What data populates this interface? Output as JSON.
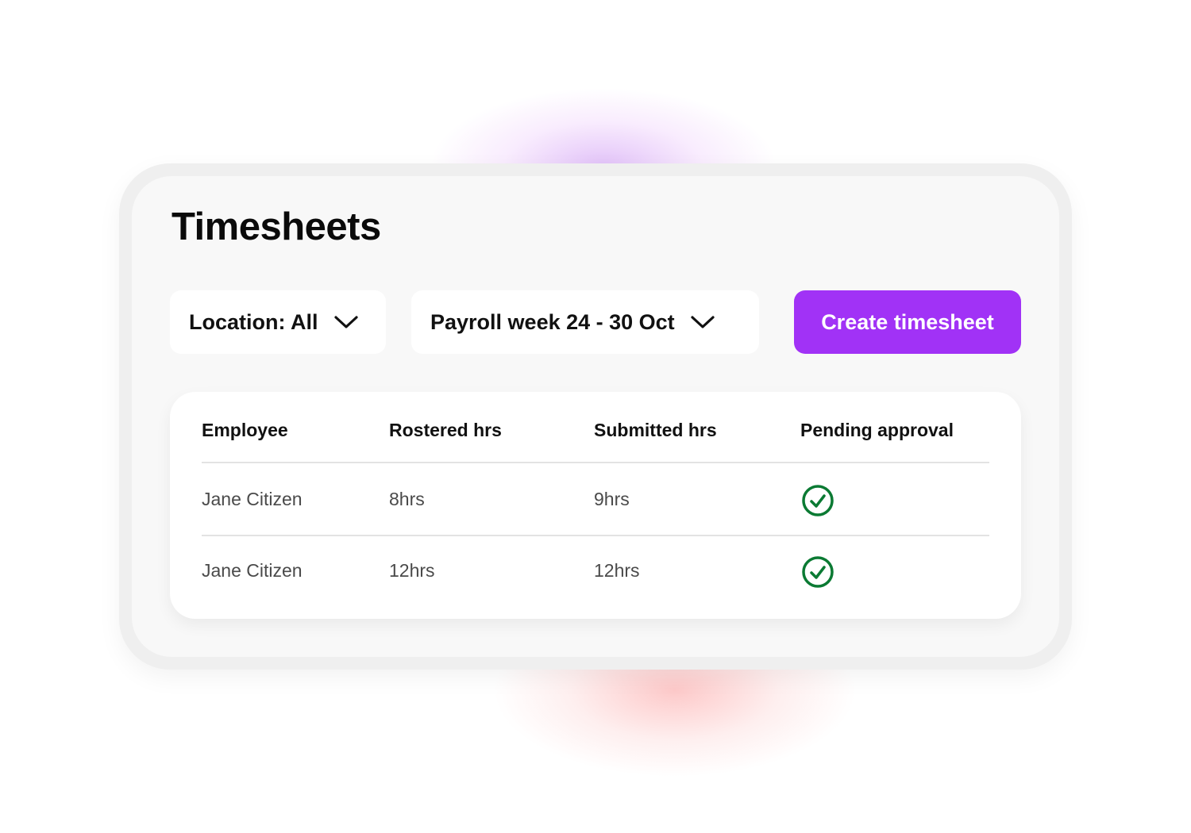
{
  "title": "Timesheets",
  "filters": {
    "location": {
      "label": "Location: All",
      "icon": "chevron-down-icon"
    },
    "payroll_week": {
      "label": "Payroll week 24 - 30 Oct",
      "icon": "chevron-down-icon"
    }
  },
  "create_button": {
    "label": "Create timesheet",
    "color": "#a132f6"
  },
  "table": {
    "columns": [
      "Employee",
      "Rostered hrs",
      "Submitted hrs",
      "Pending approval"
    ],
    "rows": [
      {
        "employee": "Jane Citizen",
        "rostered": "8hrs",
        "submitted": "9hrs",
        "pending_approval": "check-circle-icon"
      },
      {
        "employee": "Jane Citizen",
        "rostered": "12hrs",
        "submitted": "12hrs",
        "pending_approval": "check-circle-icon"
      }
    ],
    "check_color": "#0b7a33"
  }
}
